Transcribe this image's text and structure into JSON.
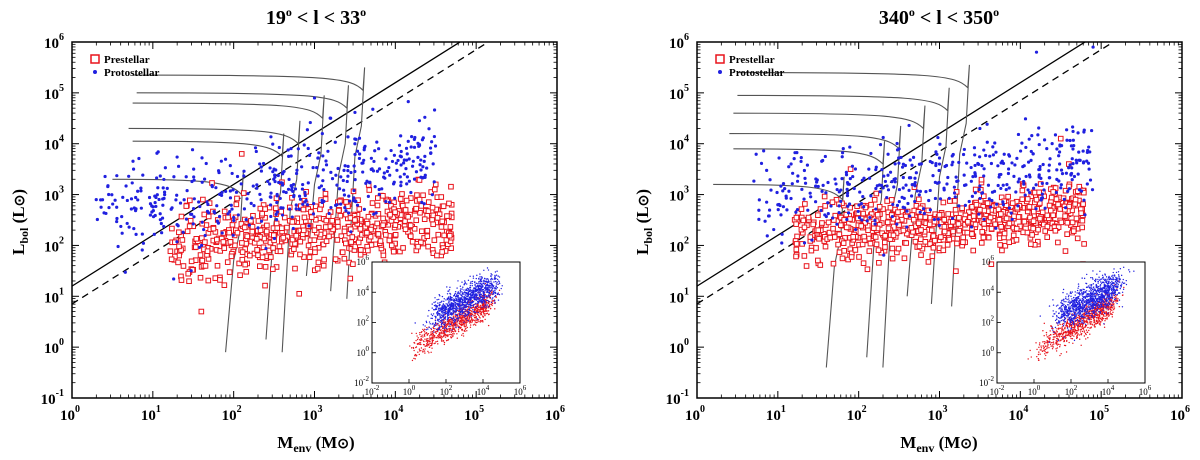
{
  "chart_data": [
    {
      "type": "scatter",
      "title": "19° < l < 33°",
      "title_parts": {
        "lo": "19",
        "mid": " < l < ",
        "hi": "33",
        "deg": "o"
      },
      "xlabel_main": "M",
      "xlabel_sub": "env",
      "xlabel_unit": " (M",
      "ylabel_main": "L",
      "ylabel_sub": "bol",
      "ylabel_unit": " (L",
      "x_scale": "log",
      "y_scale": "log",
      "xlim_exp": [
        0,
        6
      ],
      "ylim_exp": [
        -1,
        6
      ],
      "x_tick_exponents": [
        "0",
        "1",
        "2",
        "3",
        "4",
        "5",
        "6"
      ],
      "y_tick_exponents": [
        "-1",
        "0",
        "1",
        "2",
        "3",
        "4",
        "5",
        "6"
      ],
      "tick_base": "10",
      "legend": {
        "placement": "top-left",
        "entries": [
          {
            "label": "Prestellar",
            "marker": "open-square",
            "color": "#e8141c"
          },
          {
            "label": "Protostellar",
            "marker": "dot",
            "color": "#2020e0"
          }
        ]
      },
      "series": [
        {
          "name": "Prestellar",
          "color": "#e8141c",
          "marker": "open-square",
          "distribution": {
            "logM_range": [
              1.2,
              4.7
            ],
            "logL_center": [
              2.0,
              2.5
            ],
            "logL_spread": 0.35,
            "count": 600
          },
          "points_sample": [
            [
              2.2,
              1.8
            ],
            [
              2.5,
              2.1
            ],
            [
              1.8,
              1.6
            ],
            [
              3.0,
              2.3
            ],
            [
              3.5,
              2.5
            ],
            [
              4.0,
              2.4
            ],
            [
              4.5,
              3.2
            ],
            [
              4.3,
              2.9
            ],
            [
              1.6,
              0.7
            ],
            [
              2.1,
              3.8
            ]
          ]
        },
        {
          "name": "Protostellar",
          "color": "#2020e0",
          "marker": "dot",
          "distribution": {
            "logM_range": [
              0.3,
              4.5
            ],
            "logL_center": [
              2.6,
              3.6
            ],
            "logL_spread": 0.45,
            "count": 450
          },
          "points_sample": [
            [
              0.3,
              2.9
            ],
            [
              3.5,
              4.0
            ],
            [
              3.2,
              4.5
            ],
            [
              2.5,
              3.5
            ],
            [
              3.8,
              3.1
            ],
            [
              3.0,
              4.9
            ],
            [
              2.8,
              3.9
            ]
          ]
        }
      ],
      "reference_lines": [
        {
          "style": "solid",
          "relation": "log L = log M + 1.2"
        },
        {
          "style": "dashed",
          "relation": "log L = log M + 0.85"
        }
      ],
      "tracks_logM0": [
        2.1,
        2.6,
        2.8,
        3.1,
        3.4,
        3.6
      ],
      "tracks_logL_start": [
        3.3,
        4.05,
        4.3,
        4.8,
        5.0,
        5.35
      ],
      "inset": {
        "x_tick_exponents": [
          "-2",
          "0",
          "2",
          "4",
          "6"
        ],
        "y_tick_exponents": [
          "-2",
          "0",
          "2",
          "4",
          "6"
        ],
        "xlim_exp": [
          -2,
          6
        ],
        "ylim_exp": [
          -2,
          6
        ]
      }
    },
    {
      "type": "scatter",
      "title": "340° < l < 350°",
      "title_parts": {
        "lo": "340",
        "mid": " < l < ",
        "hi": "350",
        "deg": "o"
      },
      "xlabel_main": "M",
      "xlabel_sub": "env",
      "xlabel_unit": " (M",
      "ylabel_main": "L",
      "ylabel_sub": "bol",
      "ylabel_unit": " (L",
      "x_scale": "log",
      "y_scale": "log",
      "xlim_exp": [
        0,
        6
      ],
      "ylim_exp": [
        -1,
        6
      ],
      "x_tick_exponents": [
        "0",
        "1",
        "2",
        "3",
        "4",
        "5",
        "6"
      ],
      "y_tick_exponents": [
        "-1",
        "0",
        "1",
        "2",
        "3",
        "4",
        "5",
        "6"
      ],
      "tick_base": "10",
      "legend": {
        "placement": "top-left",
        "entries": [
          {
            "label": "Prestellar",
            "marker": "open-square",
            "color": "#e8141c"
          },
          {
            "label": "Protostellar",
            "marker": "dot",
            "color": "#2020e0"
          }
        ]
      },
      "series": [
        {
          "name": "Prestellar",
          "color": "#e8141c",
          "marker": "open-square",
          "distribution": {
            "logM_range": [
              1.2,
              4.8
            ],
            "logL_center": [
              2.2,
              2.7
            ],
            "logL_spread": 0.3,
            "count": 700
          },
          "points_sample": [
            [
              2.5,
              2.4
            ],
            [
              3.0,
              2.6
            ],
            [
              3.5,
              2.7
            ],
            [
              4.2,
              2.9
            ],
            [
              4.6,
              3.6
            ],
            [
              4.5,
              4.1
            ],
            [
              1.9,
              3.5
            ],
            [
              1.5,
              2.3
            ]
          ]
        },
        {
          "name": "Protostellar",
          "color": "#2020e0",
          "marker": "dot",
          "distribution": {
            "logM_range": [
              0.7,
              4.9
            ],
            "logL_center": [
              2.9,
              3.6
            ],
            "logL_spread": 0.4,
            "count": 450
          },
          "points_sample": [
            [
              4.9,
              5.9
            ],
            [
              4.2,
              5.8
            ],
            [
              3.5,
              4.3
            ],
            [
              3.0,
              3.6
            ],
            [
              2.5,
              3.9
            ],
            [
              1.0,
              2.8
            ]
          ]
        }
      ],
      "reference_lines": [
        {
          "style": "solid",
          "relation": "log L = log M + 1.2"
        },
        {
          "style": "dashed",
          "relation": "log L = log M + 0.85"
        }
      ],
      "tracks_logM0": [
        1.8,
        2.3,
        2.5,
        2.8,
        3.1,
        3.35
      ],
      "tracks_logL_start": [
        3.2,
        3.9,
        4.2,
        4.6,
        4.95,
        5.4
      ],
      "inset": {
        "x_tick_exponents": [
          "-2",
          "0",
          "2",
          "4",
          "6"
        ],
        "y_tick_exponents": [
          "-2",
          "0",
          "2",
          "4",
          "6"
        ],
        "xlim_exp": [
          -2,
          6
        ],
        "ylim_exp": [
          -2,
          6
        ]
      }
    }
  ]
}
